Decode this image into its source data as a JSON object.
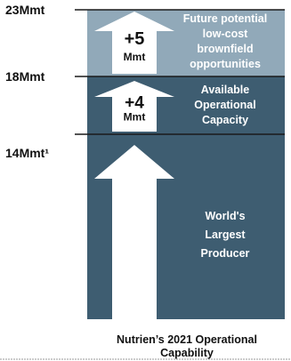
{
  "chart_data": {
    "type": "bar",
    "stacked": true,
    "categories": [
      "Nutrien's 2021 Operational Capability"
    ],
    "ylim": [
      0,
      23
    ],
    "segments": [
      {
        "bottom": 0,
        "top": 14,
        "value": 14,
        "label": [
          "World's",
          "Largest",
          "Producer"
        ],
        "arrow_value": "",
        "arrow_unit": "",
        "color": "#3e5d71",
        "label_color": "#ffffff"
      },
      {
        "bottom": 14,
        "top": 18,
        "value": 4,
        "label": [
          "Available",
          "Operational",
          "Capacity"
        ],
        "arrow_value": "+4",
        "arrow_unit": "Mmt",
        "color": "#3e5d71",
        "label_color": "#ffffff"
      },
      {
        "bottom": 18,
        "top": 23,
        "value": 5,
        "label": [
          "Future potential",
          "low-cost",
          "brownfield",
          "opportunities"
        ],
        "arrow_value": "+5",
        "arrow_unit": "Mmt",
        "color": "#91a9b9",
        "label_color": "#ffffff"
      }
    ],
    "level_labels": [
      {
        "value": 23,
        "text": "23Mmt"
      },
      {
        "value": 18,
        "text": "18Mmt"
      },
      {
        "value": 14,
        "text": "14Mmt¹"
      }
    ],
    "xlabel": [
      "Nutrien’s 2021 Operational",
      "Capability"
    ],
    "colors": {
      "line": "#1a1a1a",
      "arrow": "#ffffff",
      "footer_rule": "#9a9a9a"
    }
  }
}
